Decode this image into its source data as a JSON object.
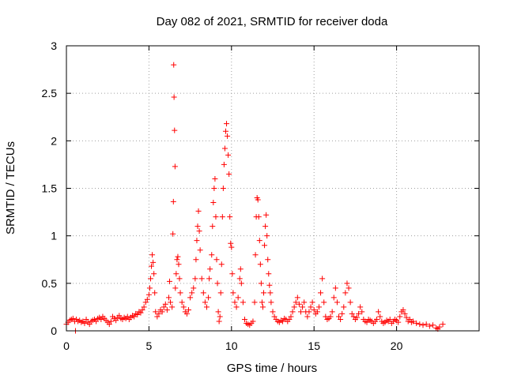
{
  "chart_data": {
    "type": "scatter",
    "title": "Day 082 of 2021, SRMTID for receiver doda",
    "xlabel": "GPS time / hours",
    "ylabel": "SRMTID / TECUs",
    "xlim": [
      0,
      25
    ],
    "ylim": [
      0,
      3
    ],
    "xticks": [
      0,
      5,
      10,
      15,
      20
    ],
    "xtick_labels": [
      "0",
      "5",
      "10",
      "15",
      "20"
    ],
    "yticks": [
      0,
      0.5,
      1,
      1.5,
      2,
      2.5,
      3
    ],
    "ytick_labels": [
      "0",
      "0.5",
      "1",
      "1.5",
      "2",
      "2.5",
      "3"
    ],
    "grid": true,
    "marker": "plus",
    "series": [
      {
        "name": "doda",
        "color": "#ff0000",
        "points": [
          [
            0.0,
            0.07
          ],
          [
            0.1,
            0.09
          ],
          [
            0.2,
            0.11
          ],
          [
            0.3,
            0.12
          ],
          [
            0.4,
            0.13
          ],
          [
            0.5,
            0.1
          ],
          [
            0.55,
            0.0
          ],
          [
            0.6,
            0.12
          ],
          [
            0.7,
            0.1
          ],
          [
            0.8,
            0.11
          ],
          [
            0.9,
            0.09
          ],
          [
            1.0,
            0.1
          ],
          [
            1.1,
            0.08
          ],
          [
            1.2,
            0.12
          ],
          [
            1.3,
            0.09
          ],
          [
            1.4,
            0.07
          ],
          [
            1.5,
            0.1
          ],
          [
            1.6,
            0.11
          ],
          [
            1.7,
            0.12
          ],
          [
            1.8,
            0.1
          ],
          [
            1.9,
            0.13
          ],
          [
            2.0,
            0.14
          ],
          [
            2.1,
            0.12
          ],
          [
            2.2,
            0.15
          ],
          [
            2.3,
            0.13
          ],
          [
            2.4,
            0.11
          ],
          [
            2.5,
            0.09
          ],
          [
            2.6,
            0.07
          ],
          [
            2.7,
            0.1
          ],
          [
            2.8,
            0.15
          ],
          [
            2.9,
            0.13
          ],
          [
            3.0,
            0.11
          ],
          [
            3.1,
            0.14
          ],
          [
            3.2,
            0.16
          ],
          [
            3.3,
            0.13
          ],
          [
            3.4,
            0.12
          ],
          [
            3.5,
            0.14
          ],
          [
            3.6,
            0.13
          ],
          [
            3.7,
            0.15
          ],
          [
            3.8,
            0.12
          ],
          [
            3.9,
            0.14
          ],
          [
            4.0,
            0.16
          ],
          [
            4.1,
            0.15
          ],
          [
            4.2,
            0.18
          ],
          [
            4.3,
            0.17
          ],
          [
            4.4,
            0.2
          ],
          [
            4.5,
            0.19
          ],
          [
            4.6,
            0.22
          ],
          [
            4.7,
            0.25
          ],
          [
            4.8,
            0.3
          ],
          [
            4.9,
            0.33
          ],
          [
            5.0,
            0.38
          ],
          [
            5.05,
            0.45
          ],
          [
            5.1,
            0.55
          ],
          [
            5.15,
            0.68
          ],
          [
            5.2,
            0.8
          ],
          [
            5.25,
            0.72
          ],
          [
            5.3,
            0.6
          ],
          [
            5.35,
            0.4
          ],
          [
            5.4,
            0.2
          ],
          [
            5.5,
            0.15
          ],
          [
            5.6,
            0.18
          ],
          [
            5.7,
            0.22
          ],
          [
            5.8,
            0.2
          ],
          [
            5.9,
            0.25
          ],
          [
            6.0,
            0.28
          ],
          [
            6.1,
            0.22
          ],
          [
            6.2,
            0.35
          ],
          [
            6.25,
            0.52
          ],
          [
            6.3,
            0.3
          ],
          [
            6.4,
            0.25
          ],
          [
            6.45,
            1.02
          ],
          [
            6.48,
            1.36
          ],
          [
            6.5,
            2.8
          ],
          [
            6.52,
            2.46
          ],
          [
            6.55,
            2.11
          ],
          [
            6.58,
            1.73
          ],
          [
            6.6,
            0.45
          ],
          [
            6.65,
            0.6
          ],
          [
            6.7,
            0.75
          ],
          [
            6.75,
            0.78
          ],
          [
            6.8,
            0.7
          ],
          [
            6.85,
            0.55
          ],
          [
            6.9,
            0.4
          ],
          [
            7.0,
            0.3
          ],
          [
            7.1,
            0.25
          ],
          [
            7.2,
            0.2
          ],
          [
            7.3,
            0.18
          ],
          [
            7.4,
            0.22
          ],
          [
            7.5,
            0.35
          ],
          [
            7.6,
            0.4
          ],
          [
            7.7,
            0.45
          ],
          [
            7.8,
            0.55
          ],
          [
            7.85,
            0.75
          ],
          [
            7.9,
            0.95
          ],
          [
            7.95,
            1.1
          ],
          [
            8.0,
            1.26
          ],
          [
            8.05,
            1.05
          ],
          [
            8.1,
            0.85
          ],
          [
            8.2,
            0.55
          ],
          [
            8.3,
            0.4
          ],
          [
            8.4,
            0.3
          ],
          [
            8.5,
            0.25
          ],
          [
            8.6,
            0.35
          ],
          [
            8.65,
            0.55
          ],
          [
            8.7,
            0.65
          ],
          [
            8.8,
            0.8
          ],
          [
            8.85,
            1.1
          ],
          [
            8.9,
            1.35
          ],
          [
            8.95,
            1.5
          ],
          [
            9.0,
            1.6
          ],
          [
            9.05,
            1.2
          ],
          [
            9.1,
            0.75
          ],
          [
            9.15,
            0.5
          ],
          [
            9.2,
            0.2
          ],
          [
            9.25,
            0.1
          ],
          [
            9.3,
            0.15
          ],
          [
            9.35,
            0.4
          ],
          [
            9.4,
            0.7
          ],
          [
            9.45,
            1.2
          ],
          [
            9.5,
            1.5
          ],
          [
            9.55,
            1.75
          ],
          [
            9.6,
            1.92
          ],
          [
            9.65,
            2.1
          ],
          [
            9.7,
            2.18
          ],
          [
            9.75,
            2.05
          ],
          [
            9.8,
            1.85
          ],
          [
            9.85,
            1.65
          ],
          [
            9.9,
            1.2
          ],
          [
            9.95,
            0.92
          ],
          [
            10.0,
            0.88
          ],
          [
            10.05,
            0.6
          ],
          [
            10.1,
            0.4
          ],
          [
            10.2,
            0.3
          ],
          [
            10.3,
            0.25
          ],
          [
            10.4,
            0.35
          ],
          [
            10.5,
            0.55
          ],
          [
            10.55,
            0.65
          ],
          [
            10.6,
            0.5
          ],
          [
            10.7,
            0.3
          ],
          [
            10.8,
            0.12
          ],
          [
            10.9,
            0.08
          ],
          [
            11.0,
            0.07
          ],
          [
            11.1,
            0.06
          ],
          [
            11.2,
            0.08
          ],
          [
            11.3,
            0.1
          ],
          [
            11.4,
            0.3
          ],
          [
            11.45,
            0.8
          ],
          [
            11.5,
            1.2
          ],
          [
            11.55,
            1.4
          ],
          [
            11.6,
            1.38
          ],
          [
            11.65,
            1.2
          ],
          [
            11.7,
            0.95
          ],
          [
            11.75,
            0.7
          ],
          [
            11.8,
            0.5
          ],
          [
            11.85,
            0.3
          ],
          [
            11.9,
            0.25
          ],
          [
            11.95,
            0.4
          ],
          [
            12.0,
            0.9
          ],
          [
            12.05,
            1.1
          ],
          [
            12.1,
            1.22
          ],
          [
            12.15,
            1.0
          ],
          [
            12.2,
            0.75
          ],
          [
            12.25,
            0.6
          ],
          [
            12.3,
            0.48
          ],
          [
            12.35,
            0.4
          ],
          [
            12.4,
            0.3
          ],
          [
            12.5,
            0.2
          ],
          [
            12.6,
            0.15
          ],
          [
            12.7,
            0.12
          ],
          [
            12.8,
            0.1
          ],
          [
            12.9,
            0.09
          ],
          [
            13.0,
            0.11
          ],
          [
            13.1,
            0.1
          ],
          [
            13.2,
            0.13
          ],
          [
            13.3,
            0.12
          ],
          [
            13.4,
            0.1
          ],
          [
            13.5,
            0.12
          ],
          [
            13.6,
            0.15
          ],
          [
            13.7,
            0.2
          ],
          [
            13.8,
            0.25
          ],
          [
            13.9,
            0.3
          ],
          [
            14.0,
            0.35
          ],
          [
            14.1,
            0.28
          ],
          [
            14.2,
            0.2
          ],
          [
            14.3,
            0.25
          ],
          [
            14.4,
            0.3
          ],
          [
            14.5,
            0.2
          ],
          [
            14.6,
            0.15
          ],
          [
            14.7,
            0.2
          ],
          [
            14.8,
            0.25
          ],
          [
            14.9,
            0.3
          ],
          [
            15.0,
            0.22
          ],
          [
            15.1,
            0.18
          ],
          [
            15.2,
            0.2
          ],
          [
            15.3,
            0.25
          ],
          [
            15.4,
            0.4
          ],
          [
            15.5,
            0.55
          ],
          [
            15.6,
            0.3
          ],
          [
            15.7,
            0.15
          ],
          [
            15.8,
            0.12
          ],
          [
            15.9,
            0.13
          ],
          [
            16.0,
            0.15
          ],
          [
            16.1,
            0.2
          ],
          [
            16.2,
            0.35
          ],
          [
            16.3,
            0.45
          ],
          [
            16.4,
            0.3
          ],
          [
            16.5,
            0.15
          ],
          [
            16.6,
            0.12
          ],
          [
            16.7,
            0.18
          ],
          [
            16.8,
            0.25
          ],
          [
            16.9,
            0.4
          ],
          [
            17.0,
            0.5
          ],
          [
            17.1,
            0.45
          ],
          [
            17.2,
            0.3
          ],
          [
            17.3,
            0.18
          ],
          [
            17.4,
            0.15
          ],
          [
            17.5,
            0.12
          ],
          [
            17.6,
            0.14
          ],
          [
            17.7,
            0.18
          ],
          [
            17.8,
            0.25
          ],
          [
            17.9,
            0.2
          ],
          [
            18.0,
            0.12
          ],
          [
            18.1,
            0.1
          ],
          [
            18.2,
            0.09
          ],
          [
            18.3,
            0.12
          ],
          [
            18.4,
            0.11
          ],
          [
            18.5,
            0.1
          ],
          [
            18.6,
            0.08
          ],
          [
            18.7,
            0.1
          ],
          [
            18.8,
            0.12
          ],
          [
            18.9,
            0.2
          ],
          [
            19.0,
            0.15
          ],
          [
            19.1,
            0.1
          ],
          [
            19.2,
            0.08
          ],
          [
            19.3,
            0.09
          ],
          [
            19.4,
            0.11
          ],
          [
            19.5,
            0.1
          ],
          [
            19.6,
            0.12
          ],
          [
            19.7,
            0.08
          ],
          [
            19.8,
            0.1
          ],
          [
            19.9,
            0.12
          ],
          [
            20.0,
            0.11
          ],
          [
            20.1,
            0.09
          ],
          [
            20.2,
            0.15
          ],
          [
            20.3,
            0.2
          ],
          [
            20.4,
            0.22
          ],
          [
            20.5,
            0.18
          ],
          [
            20.6,
            0.14
          ],
          [
            20.7,
            0.1
          ],
          [
            20.8,
            0.12
          ],
          [
            20.9,
            0.09
          ],
          [
            21.0,
            0.1
          ],
          [
            21.2,
            0.08
          ],
          [
            21.4,
            0.07
          ],
          [
            21.6,
            0.06
          ],
          [
            21.8,
            0.07
          ],
          [
            22.0,
            0.05
          ],
          [
            22.2,
            0.06
          ],
          [
            22.4,
            0.03
          ],
          [
            22.5,
            0.02
          ],
          [
            22.6,
            0.04
          ],
          [
            22.8,
            0.07
          ]
        ]
      }
    ]
  }
}
